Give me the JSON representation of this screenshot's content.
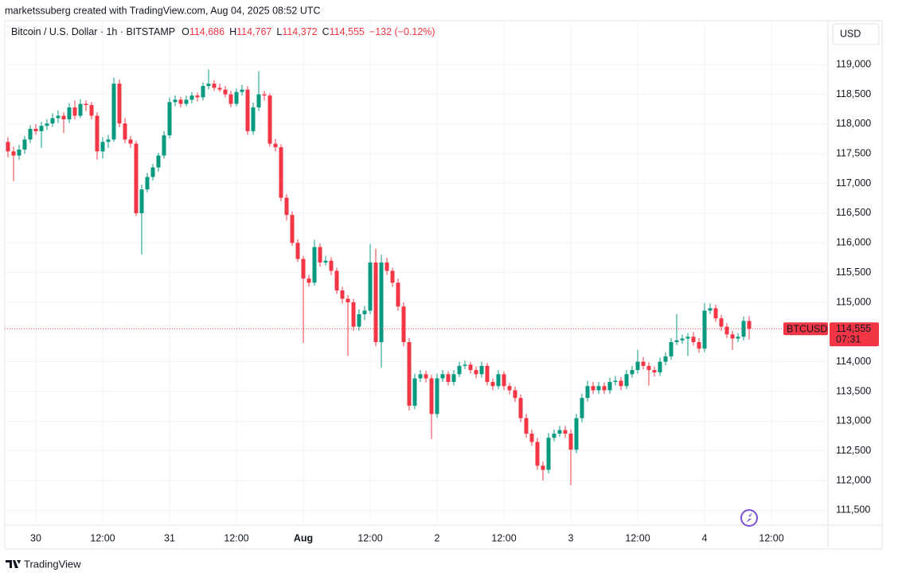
{
  "header": {
    "credit": "marketssuberg created with TradingView.com, Aug 04, 2025 08:52 UTC"
  },
  "footer": {
    "brand": "TradingView"
  },
  "chart_data": {
    "type": "candlestick",
    "symbol": "Bitcoin / U.S. Dollar · 1h · BITSTAMP",
    "legend_items": [
      {
        "key": "O",
        "value": "114,686"
      },
      {
        "key": "H",
        "value": "114,767"
      },
      {
        "key": "L",
        "value": "114,372"
      },
      {
        "key": "C",
        "value": "114,555"
      }
    ],
    "change": "−132 (−0.12%)",
    "currency": "USD",
    "up_color": "#089981",
    "down_color": "#f23645",
    "last_price": {
      "value": 114555,
      "label": "114,555"
    },
    "last_price_name": "BTCUSD",
    "countdown": "07:31",
    "grid": true,
    "xlim": [
      -0.57,
      147.14
    ],
    "ylim": [
      111250,
      119740
    ],
    "yticks": [
      {
        "value": 111500,
        "label": "111,500"
      },
      {
        "value": 112000,
        "label": "112,000"
      },
      {
        "value": 112500,
        "label": "112,500"
      },
      {
        "value": 113000,
        "label": "113,000"
      },
      {
        "value": 113500,
        "label": "113,500"
      },
      {
        "value": 114000,
        "label": "114,000"
      },
      {
        "value": 114500,
        "label": "114,500"
      },
      {
        "value": 115000,
        "label": "115,000"
      },
      {
        "value": 115500,
        "label": "115,500"
      },
      {
        "value": 116000,
        "label": "116,000"
      },
      {
        "value": 116500,
        "label": "116,500"
      },
      {
        "value": 117000,
        "label": "117,000"
      },
      {
        "value": 117500,
        "label": "117,500"
      },
      {
        "value": 118000,
        "label": "118,000"
      },
      {
        "value": 118500,
        "label": "118,500"
      },
      {
        "value": 119000,
        "label": "119,000"
      }
    ],
    "xticks": [
      {
        "value": 5,
        "label": "30"
      },
      {
        "value": 17,
        "label": "12:00"
      },
      {
        "value": 29,
        "label": "31"
      },
      {
        "value": 41,
        "label": "12:00"
      },
      {
        "value": 53,
        "label": "Aug",
        "bold": true
      },
      {
        "value": 65,
        "label": "12:00"
      },
      {
        "value": 77,
        "label": "2"
      },
      {
        "value": 89,
        "label": "12:00"
      },
      {
        "value": 101,
        "label": "3"
      },
      {
        "value": 113,
        "label": "12:00"
      },
      {
        "value": 125,
        "label": "4"
      },
      {
        "value": 137,
        "label": "12:00"
      }
    ],
    "candles": [
      [
        117700,
        117780,
        117440,
        117540
      ],
      [
        117540,
        117620,
        117040,
        117470
      ],
      [
        117470,
        117650,
        117400,
        117570
      ],
      [
        117570,
        117800,
        117500,
        117740
      ],
      [
        117740,
        117980,
        117680,
        117920
      ],
      [
        117920,
        118000,
        117820,
        117880
      ],
      [
        117880,
        118040,
        117600,
        117970
      ],
      [
        117970,
        118080,
        117900,
        118010
      ],
      [
        118010,
        118180,
        117950,
        118100
      ],
      [
        118100,
        118230,
        118020,
        118140
      ],
      [
        118140,
        118200,
        117850,
        118080
      ],
      [
        118080,
        118350,
        118020,
        118280
      ],
      [
        118280,
        118400,
        118080,
        118140
      ],
      [
        118140,
        118420,
        118100,
        118340
      ],
      [
        118340,
        118400,
        118220,
        118320
      ],
      [
        118320,
        118370,
        118080,
        118140
      ],
      [
        118140,
        118200,
        117400,
        117540
      ],
      [
        117540,
        117780,
        117420,
        117700
      ],
      [
        117700,
        117820,
        117600,
        117740
      ],
      [
        117740,
        118780,
        117700,
        118680
      ],
      [
        118680,
        118750,
        117950,
        118010
      ],
      [
        118010,
        118100,
        117680,
        117740
      ],
      [
        117740,
        117800,
        117600,
        117670
      ],
      [
        117670,
        117720,
        116450,
        116500
      ],
      [
        116500,
        116980,
        115800,
        116900
      ],
      [
        116900,
        117180,
        116850,
        117110
      ],
      [
        117110,
        117330,
        117050,
        117270
      ],
      [
        117270,
        117520,
        117200,
        117470
      ],
      [
        117470,
        117880,
        117420,
        117810
      ],
      [
        117810,
        118450,
        117760,
        118370
      ],
      [
        118370,
        118480,
        118300,
        118410
      ],
      [
        118410,
        118460,
        118280,
        118340
      ],
      [
        118340,
        118480,
        118300,
        118410
      ],
      [
        118410,
        118540,
        118350,
        118480
      ],
      [
        118480,
        118530,
        118380,
        118450
      ],
      [
        118450,
        118700,
        118400,
        118640
      ],
      [
        118640,
        118920,
        118580,
        118680
      ],
      [
        118680,
        118740,
        118560,
        118610
      ],
      [
        118610,
        118680,
        118540,
        118580
      ],
      [
        118580,
        118640,
        118450,
        118500
      ],
      [
        118500,
        118560,
        118280,
        118340
      ],
      [
        118340,
        118600,
        118300,
        118540
      ],
      [
        118540,
        118660,
        118480,
        118580
      ],
      [
        118580,
        118640,
        117820,
        117880
      ],
      [
        117880,
        118360,
        117820,
        118280
      ],
      [
        118280,
        118890,
        118220,
        118500
      ],
      [
        118500,
        118560,
        118400,
        118480
      ],
      [
        118480,
        118520,
        117620,
        117670
      ],
      [
        117670,
        117750,
        117540,
        117610
      ],
      [
        117610,
        117660,
        116700,
        116760
      ],
      [
        116760,
        116820,
        116380,
        116470
      ],
      [
        116470,
        116530,
        115950,
        116000
      ],
      [
        116000,
        116060,
        115680,
        115730
      ],
      [
        115730,
        115780,
        114320,
        115400
      ],
      [
        115400,
        115460,
        115260,
        115330
      ],
      [
        115330,
        116050,
        115280,
        115930
      ],
      [
        115930,
        115990,
        115600,
        115670
      ],
      [
        115670,
        115780,
        115620,
        115700
      ],
      [
        115700,
        115760,
        115460,
        115530
      ],
      [
        115530,
        115580,
        115140,
        115200
      ],
      [
        115200,
        115260,
        114980,
        115060
      ],
      [
        115060,
        115120,
        114100,
        115000
      ],
      [
        115000,
        115060,
        114520,
        114590
      ],
      [
        114590,
        114880,
        114520,
        114800
      ],
      [
        114800,
        114940,
        114700,
        114860
      ],
      [
        114860,
        115980,
        114800,
        115670
      ],
      [
        115670,
        115900,
        114260,
        114330
      ],
      [
        114330,
        115800,
        113900,
        115670
      ],
      [
        115670,
        115750,
        115460,
        115530
      ],
      [
        115530,
        115580,
        115260,
        115330
      ],
      [
        115330,
        115400,
        114860,
        114930
      ],
      [
        114930,
        115000,
        114260,
        114330
      ],
      [
        114330,
        114400,
        113180,
        113260
      ],
      [
        113260,
        113800,
        113200,
        113720
      ],
      [
        113720,
        113860,
        113660,
        113790
      ],
      [
        113790,
        113850,
        113650,
        113720
      ],
      [
        113720,
        113780,
        112700,
        113120
      ],
      [
        113120,
        113800,
        113060,
        113720
      ],
      [
        113720,
        113860,
        113660,
        113790
      ],
      [
        113790,
        113840,
        113600,
        113660
      ],
      [
        113660,
        113860,
        113600,
        113790
      ],
      [
        113790,
        114000,
        113740,
        113930
      ],
      [
        113930,
        114020,
        113880,
        113950
      ],
      [
        113950,
        114000,
        113800,
        113860
      ],
      [
        113860,
        113920,
        113720,
        113790
      ],
      [
        113790,
        114000,
        113730,
        113930
      ],
      [
        113930,
        113980,
        113600,
        113660
      ],
      [
        113660,
        113720,
        113520,
        113590
      ],
      [
        113590,
        113860,
        113540,
        113790
      ],
      [
        113790,
        113840,
        113520,
        113590
      ],
      [
        113590,
        113640,
        113450,
        113520
      ],
      [
        113520,
        113580,
        113320,
        113390
      ],
      [
        113390,
        113450,
        112980,
        113050
      ],
      [
        113050,
        113120,
        112720,
        112790
      ],
      [
        112790,
        112860,
        112580,
        112650
      ],
      [
        112650,
        112720,
        112180,
        112250
      ],
      [
        112250,
        112320,
        112000,
        112180
      ],
      [
        112180,
        112800,
        112120,
        112720
      ],
      [
        112720,
        112860,
        112660,
        112790
      ],
      [
        112790,
        112920,
        112740,
        112850
      ],
      [
        112850,
        112920,
        112720,
        112790
      ],
      [
        112790,
        112860,
        111920,
        112520
      ],
      [
        112520,
        113120,
        112460,
        113050
      ],
      [
        113050,
        113460,
        112980,
        113390
      ],
      [
        113390,
        113680,
        113330,
        113590
      ],
      [
        113590,
        113660,
        113460,
        113520
      ],
      [
        113520,
        113660,
        113460,
        113590
      ],
      [
        113590,
        113650,
        113460,
        113520
      ],
      [
        113520,
        113730,
        113460,
        113660
      ],
      [
        113660,
        113760,
        113600,
        113680
      ],
      [
        113680,
        113740,
        113520,
        113590
      ],
      [
        113590,
        113860,
        113540,
        113790
      ],
      [
        113790,
        113930,
        113730,
        113860
      ],
      [
        113860,
        114200,
        113800,
        114000
      ],
      [
        114000,
        114080,
        113870,
        113930
      ],
      [
        113930,
        113990,
        113600,
        113860
      ],
      [
        113860,
        113920,
        113750,
        113820
      ],
      [
        113820,
        114070,
        113760,
        114000
      ],
      [
        114000,
        114160,
        113940,
        114090
      ],
      [
        114090,
        114400,
        114030,
        114330
      ],
      [
        114330,
        114800,
        114280,
        114360
      ],
      [
        114360,
        114460,
        114300,
        114390
      ],
      [
        114390,
        114480,
        114100,
        114420
      ],
      [
        114420,
        114500,
        114270,
        114330
      ],
      [
        114330,
        114400,
        114150,
        114220
      ],
      [
        114220,
        114990,
        114160,
        114860
      ],
      [
        114860,
        114980,
        114800,
        114900
      ],
      [
        114900,
        114960,
        114670,
        114730
      ],
      [
        114730,
        114790,
        114520,
        114590
      ],
      [
        114590,
        114650,
        114400,
        114460
      ],
      [
        114460,
        114520,
        114200,
        114390
      ],
      [
        114390,
        114480,
        114330,
        114420
      ],
      [
        114420,
        114760,
        114360,
        114686
      ],
      [
        114686,
        114767,
        114372,
        114555
      ]
    ]
  }
}
